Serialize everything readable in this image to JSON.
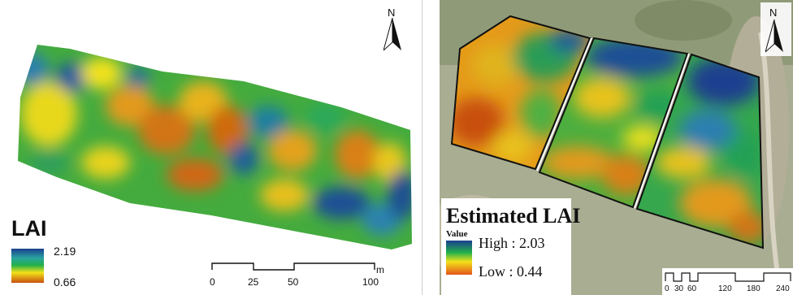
{
  "left_map": {
    "legend_title": "LAI",
    "legend_max": "2.19",
    "legend_min": "0.66",
    "north_label": "N",
    "scale_ticks": [
      "0",
      "25",
      "50",
      "100"
    ],
    "scale_unit": "m"
  },
  "right_map": {
    "legend_title": "Estimated LAI",
    "value_label": "Value",
    "high_label": "High : 2.03",
    "low_label": "Low : 0.44",
    "north_label": "N",
    "scale_ticks": [
      "0",
      "30",
      "60",
      "120",
      "180",
      "240"
    ]
  },
  "colors": {
    "high": "#1a3f8f",
    "mid": "#21b04b",
    "midlow": "#f2e21a",
    "low": "#c8500f"
  }
}
